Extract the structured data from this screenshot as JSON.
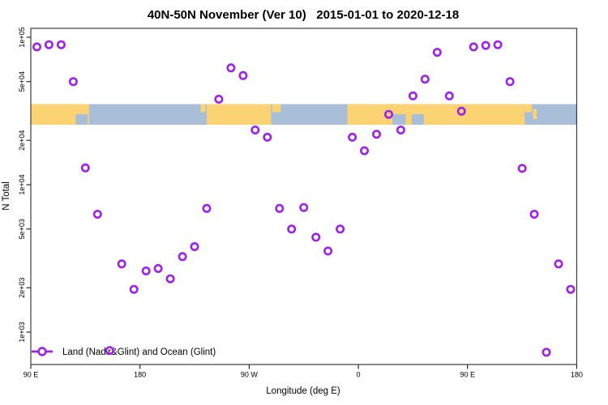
{
  "title": "40N-50N November (Ver 10)   2015-01-01 to 2020-12-18",
  "x_axis": {
    "label": "Longitude (deg E)",
    "ticks": [
      {
        "lon": 90,
        "label": "90 E"
      },
      {
        "lon": 180,
        "label": "180"
      },
      {
        "lon": 270,
        "label": "90 W"
      },
      {
        "lon": 360,
        "label": "0"
      },
      {
        "lon": 450,
        "label": "90 E"
      },
      {
        "lon": 540,
        "label": "180"
      }
    ]
  },
  "y_axis": {
    "label": "N Total",
    "ticks": [
      {
        "value": 100000,
        "label": "1e+05"
      },
      {
        "value": 50000,
        "label": "5e+04"
      },
      {
        "value": 20000,
        "label": "2e+04"
      },
      {
        "value": 10000,
        "label": "1e+04"
      },
      {
        "value": 5000,
        "label": "5e+03"
      },
      {
        "value": 2000,
        "label": "2e+03"
      },
      {
        "value": 1000,
        "label": "1e+03"
      }
    ]
  },
  "legend": {
    "label": "Land (Nadir&Glint) and Ocean (Glint)"
  },
  "colors": {
    "point": "#A020F0",
    "land": "#FCD372",
    "ocean": "#A9BFD8",
    "axis": "#2b2b2b"
  },
  "map_band": {
    "description": "land/ocean strip for 40N-50N vs longitude",
    "ocean_segments": [
      {
        "from": 127,
        "to": 137,
        "part": "bottom"
      },
      {
        "from": 138,
        "to": 235,
        "part": "full"
      },
      {
        "from": 288,
        "to": 351,
        "part": "full"
      },
      {
        "from": 388,
        "to": 399,
        "part": "bottom"
      },
      {
        "from": 404,
        "to": 414,
        "part": "bottom"
      },
      {
        "from": 497,
        "to": 540,
        "part": "full"
      }
    ],
    "land_patches": [
      {
        "from": 230,
        "to": 234,
        "part": "top"
      },
      {
        "from": 289,
        "to": 296,
        "part": "top"
      },
      {
        "from": 497,
        "to": 503,
        "part": "top"
      },
      {
        "from": 504,
        "to": 507,
        "part": "mid"
      }
    ]
  },
  "chart_data": {
    "type": "scatter",
    "title": "40N-50N November (Ver 10)   2015-01-01 to 2020-12-18",
    "xlabel": "Longitude (deg E)",
    "ylabel": "N Total",
    "x_range": [
      90,
      540
    ],
    "y_scale": "log",
    "y_range": [
      600,
      115000
    ],
    "grid": false,
    "legend_position": "bottom-left",
    "series": [
      {
        "name": "Land (Nadir&Glint) and Ocean (Glint)",
        "marker": "open-circle",
        "points": [
          [
            95,
            86000
          ],
          [
            105,
            89000
          ],
          [
            115,
            89000
          ],
          [
            125,
            50000
          ],
          [
            135,
            13000
          ],
          [
            145,
            6300
          ],
          [
            155,
            750
          ],
          [
            165,
            2900
          ],
          [
            175,
            1950
          ],
          [
            185,
            2600
          ],
          [
            195,
            2700
          ],
          [
            205,
            2300
          ],
          [
            215,
            3250
          ],
          [
            225,
            3800
          ],
          [
            235,
            6900
          ],
          [
            245,
            38000
          ],
          [
            255,
            62000
          ],
          [
            265,
            55000
          ],
          [
            275,
            23500
          ],
          [
            285,
            21000
          ],
          [
            295,
            6900
          ],
          [
            305,
            5000
          ],
          [
            315,
            7000
          ],
          [
            325,
            4400
          ],
          [
            335,
            3550
          ],
          [
            345,
            5000
          ],
          [
            355,
            21000
          ],
          [
            365,
            17000
          ],
          [
            375,
            22000
          ],
          [
            385,
            30000
          ],
          [
            395,
            23500
          ],
          [
            405,
            40000
          ],
          [
            415,
            52000
          ],
          [
            425,
            79000
          ],
          [
            435,
            40000
          ],
          [
            445,
            31500
          ],
          [
            455,
            86000
          ],
          [
            465,
            88000
          ],
          [
            475,
            89000
          ],
          [
            485,
            50000
          ],
          [
            495,
            12900
          ],
          [
            505,
            6300
          ],
          [
            515,
            730
          ],
          [
            525,
            2900
          ],
          [
            535,
            1950
          ]
        ]
      }
    ]
  }
}
